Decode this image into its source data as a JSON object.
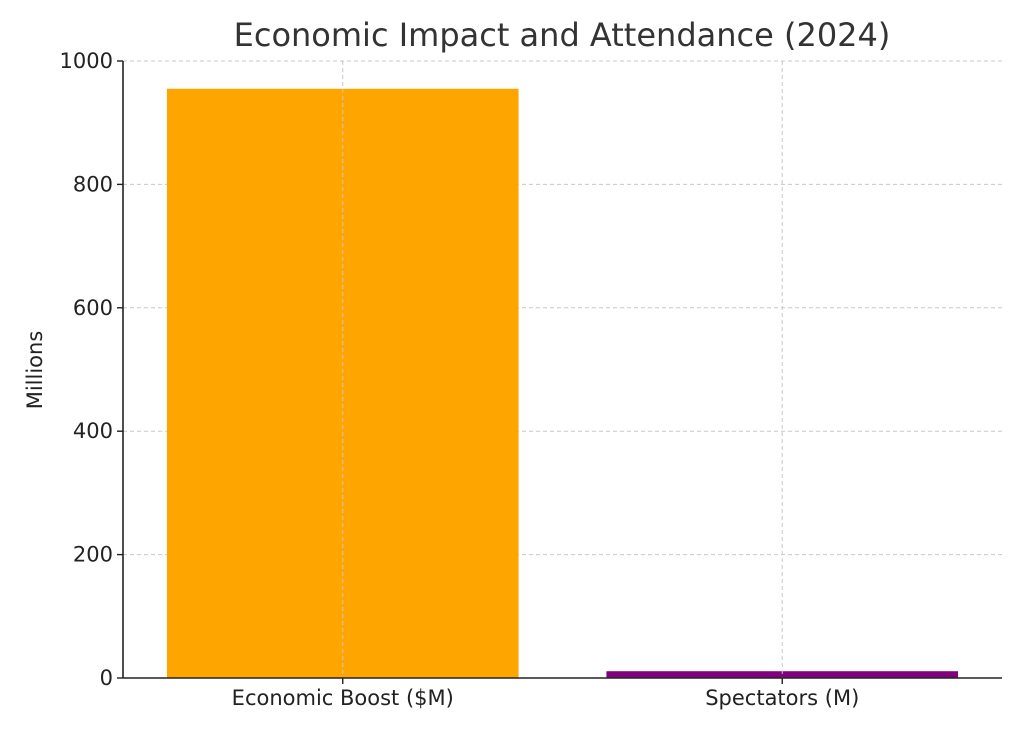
{
  "chart_data": {
    "type": "bar",
    "title": "Economic Impact and Attendance (2024)",
    "xlabel": "",
    "ylabel": "Millions",
    "categories": [
      "Economic Boost ($M)",
      "Spectators (M)"
    ],
    "values": [
      955,
      11
    ],
    "colors": [
      "#ffa500",
      "#800080"
    ],
    "ylim": [
      0,
      1000
    ],
    "yticks": [
      0,
      200,
      400,
      600,
      800,
      1000
    ],
    "grid": true
  }
}
